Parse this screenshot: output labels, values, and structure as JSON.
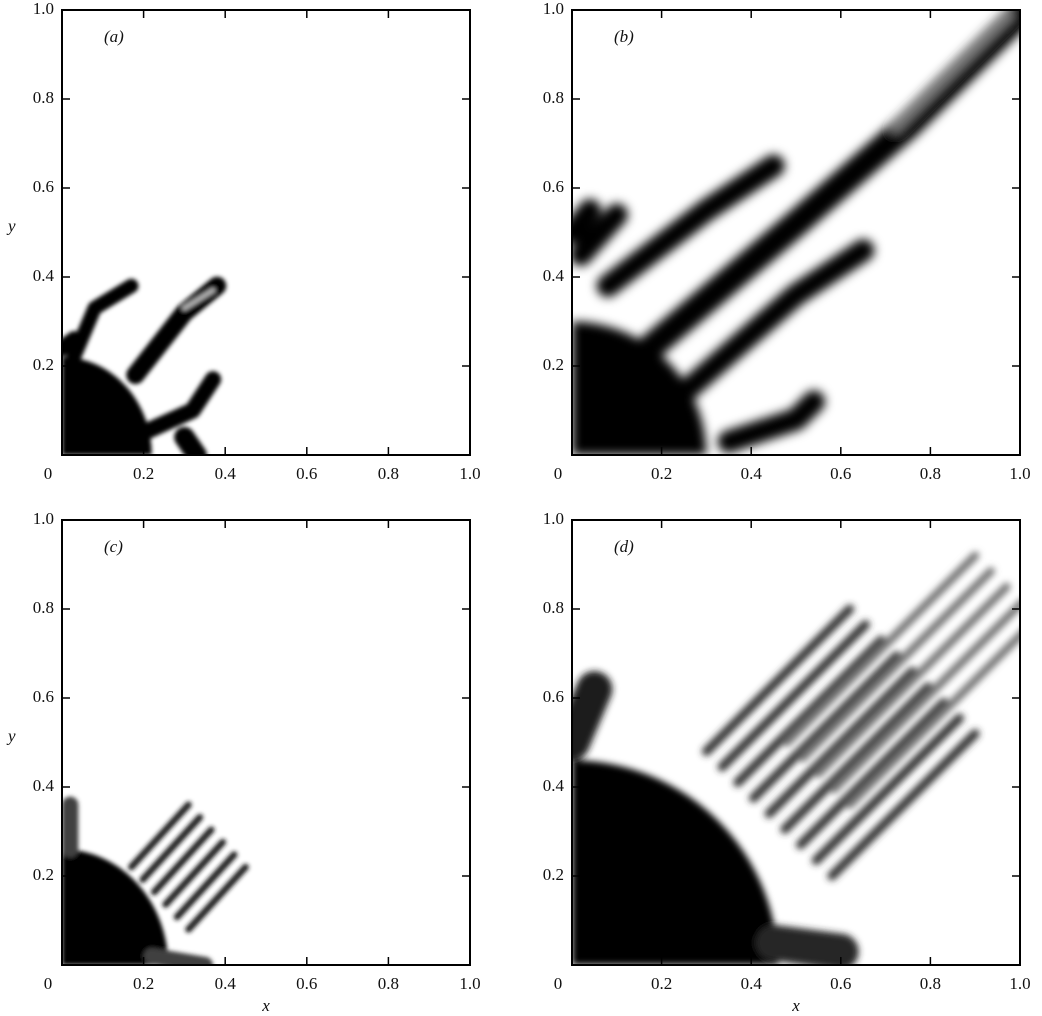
{
  "chart_data": [
    {
      "type": "image",
      "panel_label": "(a)",
      "ylabel": "y",
      "xlim": [
        0,
        1
      ],
      "ylim": [
        0,
        1
      ],
      "xticks": [
        0,
        0.2,
        0.4,
        0.6,
        0.8,
        {
          "value": 1,
          "label": "1.0"
        }
      ],
      "yticks": [
        0.2,
        0.4,
        0.6,
        0.8,
        {
          "value": 1,
          "label": "1.0"
        }
      ]
    },
    {
      "type": "image",
      "panel_label": "(b)",
      "xlim": [
        0,
        1
      ],
      "ylim": [
        0,
        1
      ],
      "xticks": [
        0,
        0.2,
        0.4,
        0.6,
        0.8,
        {
          "value": 1,
          "label": "1.0"
        }
      ],
      "yticks": [
        0.2,
        0.4,
        0.6,
        0.8,
        {
          "value": 1,
          "label": "1.0"
        }
      ]
    },
    {
      "type": "image",
      "panel_label": "(c)",
      "ylabel": "y",
      "xlabel": "x",
      "xlim": [
        0,
        1
      ],
      "ylim": [
        0,
        1
      ],
      "xticks": [
        0,
        0.2,
        0.4,
        0.6,
        0.8,
        {
          "value": 1,
          "label": "1.0"
        }
      ],
      "yticks": [
        0.2,
        0.4,
        0.6,
        0.8,
        {
          "value": 1,
          "label": "1.0"
        }
      ]
    },
    {
      "type": "image",
      "panel_label": "(d)",
      "xlabel": "x",
      "xlim": [
        0,
        1
      ],
      "ylim": [
        0,
        1
      ],
      "xticks": [
        0,
        0.2,
        0.4,
        0.6,
        0.8,
        {
          "value": 1,
          "label": "1.0"
        }
      ],
      "yticks": [
        0.2,
        0.4,
        0.6,
        0.8,
        {
          "value": 1,
          "label": "1.0"
        }
      ]
    }
  ]
}
